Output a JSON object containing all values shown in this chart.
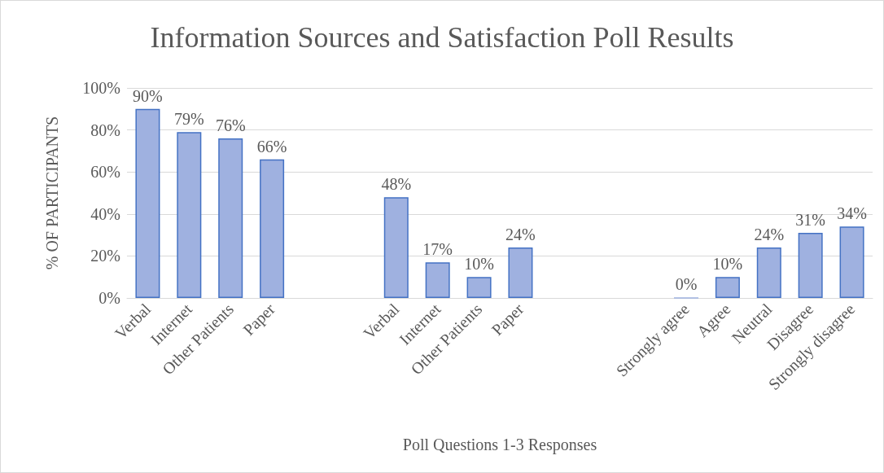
{
  "chart_data": {
    "type": "bar",
    "title": "Information Sources and Satisfaction Poll Results",
    "xlabel": "Poll Questions 1-3 Responses",
    "ylabel": "% OF PARTICIPANTS",
    "categories": [
      "Verbal",
      "Internet",
      "Other Patients",
      "Paper",
      null,
      null,
      "Verbal",
      "Internet",
      "Other Patients",
      "Paper",
      null,
      null,
      null,
      "Strongly agree",
      "Agree",
      "Neutral",
      "Disagree",
      "Strongly disagree"
    ],
    "values": [
      90,
      79,
      76,
      66,
      null,
      null,
      48,
      17,
      10,
      24,
      null,
      null,
      null,
      0,
      10,
      24,
      31,
      34
    ],
    "value_labels": [
      "90%",
      "79%",
      "76%",
      "66%",
      null,
      null,
      "48%",
      "17%",
      "10%",
      "24%",
      null,
      null,
      null,
      "0%",
      "10%",
      "24%",
      "31%",
      "34%"
    ],
    "color": "#9fb1e0",
    "ylim": [
      0,
      100
    ],
    "yticks": [
      {
        "value": 0,
        "label": "0%"
      },
      {
        "value": 20,
        "label": "20%"
      },
      {
        "value": 40,
        "label": "40%"
      },
      {
        "value": 60,
        "label": "60%"
      },
      {
        "value": 80,
        "label": "80%"
      },
      {
        "value": 100,
        "label": "100%"
      }
    ],
    "grid": "y"
  }
}
